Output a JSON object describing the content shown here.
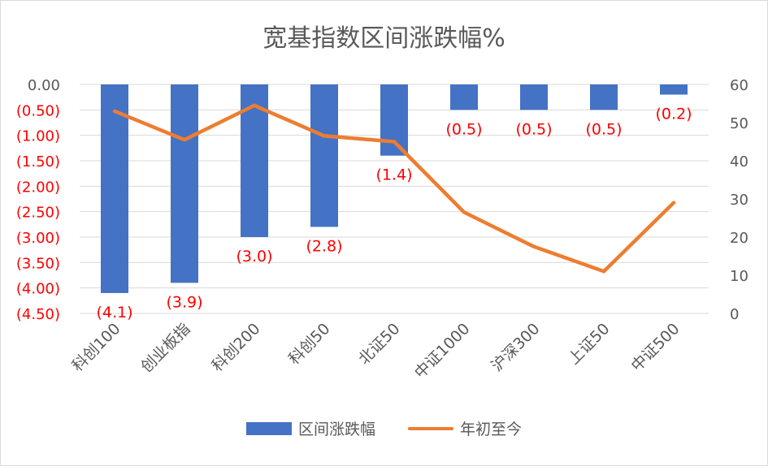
{
  "chart_data": {
    "type": "bar",
    "title": "宽基指数区间涨跌幅%",
    "categories": [
      "科创100",
      "创业板指",
      "科创200",
      "科创50",
      "北证50",
      "中证1000",
      "沪深300",
      "上证50",
      "中证500"
    ],
    "series": [
      {
        "name": "区间涨跌幅",
        "type": "bar",
        "axis": "left",
        "color": "#4472C4",
        "values": [
          -4.1,
          -3.9,
          -3.0,
          -2.8,
          -1.4,
          -0.5,
          -0.5,
          -0.5,
          -0.2
        ],
        "data_labels": [
          "(4.1)",
          "(3.9)",
          "(3.0)",
          "(2.8)",
          "(1.4)",
          "(0.5)",
          "(0.5)",
          "(0.5)",
          "(0.2)"
        ]
      },
      {
        "name": "年初至今",
        "type": "line",
        "axis": "right",
        "color": "#ED7D31",
        "values": [
          53,
          45.5,
          54.5,
          46.5,
          45,
          26.5,
          17.5,
          11,
          29
        ]
      }
    ],
    "left_axis": {
      "ylim": [
        -4.5,
        0
      ],
      "ticks": [
        0,
        -0.5,
        -1.0,
        -1.5,
        -2.0,
        -2.5,
        -3.0,
        -3.5,
        -4.0,
        -4.5
      ],
      "tick_labels": [
        "0.00",
        "(0.50)",
        "(1.00)",
        "(1.50)",
        "(2.00)",
        "(2.50)",
        "(3.00)",
        "(3.50)",
        "(4.00)",
        "(4.50)"
      ],
      "zero_label_color": "#595959",
      "negative_label_color": "#FF0000"
    },
    "right_axis": {
      "ylim": [
        0,
        60
      ],
      "ticks": [
        0,
        10,
        20,
        30,
        40,
        50,
        60
      ],
      "tick_labels": [
        "0",
        "10",
        "20",
        "30",
        "40",
        "50",
        "60"
      ],
      "label_color": "#595959"
    },
    "grid": true,
    "legend_position": "bottom",
    "data_label_color": "#FF0000"
  }
}
